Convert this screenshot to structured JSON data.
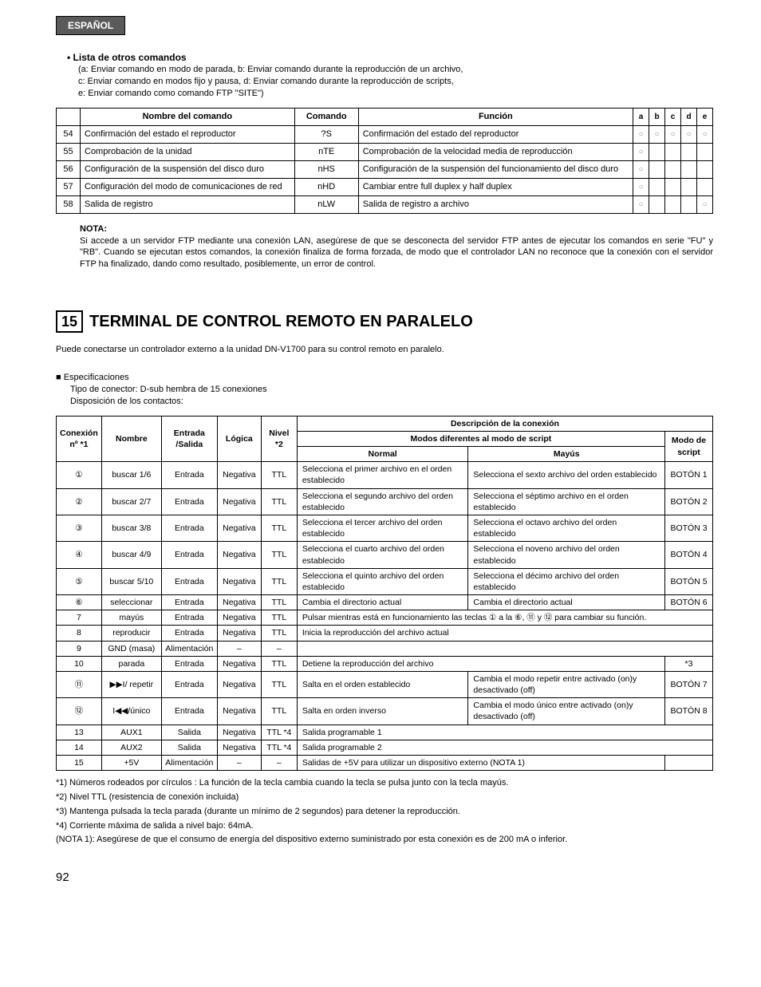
{
  "lang_badge": "ESPAÑOL",
  "list_title": "Lista de otros comandos",
  "cmd_notes": {
    "a": "(a: Enviar comando en modo de parada, b: Enviar comando durante la reproducción de un archivo,",
    "c": "c: Enviar comando en modos fijo y pausa, d: Enviar comando durante la reproducción de scripts,",
    "e": "e: Enviar comando como comando FTP \"SITE\")"
  },
  "t1_headers": {
    "name": "Nombre del comando",
    "cmd": "Comando",
    "func": "Función",
    "a": "a",
    "b": "b",
    "c": "c",
    "d": "d",
    "e": "e"
  },
  "t1_rows": [
    {
      "n": "54",
      "name": "Confirmación del estado el reproductor",
      "cmd": "?S",
      "func": "Confirmación del estado del reproductor",
      "a": "○",
      "b": "○",
      "c": "○",
      "d": "○",
      "e": "○"
    },
    {
      "n": "55",
      "name": "Comprobación de la unidad",
      "cmd": "nTE",
      "func": "Comprobación de la velocidad media de reproducción",
      "a": "○",
      "b": "",
      "c": "",
      "d": "",
      "e": ""
    },
    {
      "n": "56",
      "name": "Configuración de la suspensión del disco duro",
      "cmd": "nHS",
      "func": "Configuración de la suspensión del funcionamiento del disco duro",
      "a": "○",
      "b": "",
      "c": "",
      "d": "",
      "e": ""
    },
    {
      "n": "57",
      "name": "Configuración del modo de comunicaciones de red",
      "cmd": "nHD",
      "func": "Cambiar entre full duplex y half duplex",
      "a": "○",
      "b": "",
      "c": "",
      "d": "",
      "e": ""
    },
    {
      "n": "58",
      "name": "Salida de registro",
      "cmd": "nLW",
      "func": "Salida de registro a archivo",
      "a": "○",
      "b": "",
      "c": "",
      "d": "",
      "e": "○"
    }
  ],
  "note_label": "NOTA:",
  "note_text": "Si accede a un servidor FTP mediante una conexión LAN, asegúrese de que se desconecta del servidor FTP antes de ejecutar los comandos en serie \"FU\" y \"RB\". Cuando se ejecutan estos comandos, la conexión finaliza de forma forzada, de modo que el controlador LAN no reconoce que la conexión con el servidor FTP ha finalizado, dando como resultado, posiblemente, un error de control.",
  "section_num": "15",
  "section_title": "TERMINAL DE CONTROL REMOTO EN PARALELO",
  "intro": "Puede conectarse un controlador externo a la unidad DN-V1700 para su control remoto en paralelo.",
  "spec_label": "Especificaciones",
  "spec_connector": "Tipo de conector: D-sub hembra de 15 conexiones",
  "spec_layout": "Disposición de los contactos:",
  "t2_headers": {
    "pin": "Conexión nº *1",
    "name": "Nombre",
    "io": "Entrada /Salida",
    "logic": "Lógica",
    "level": "Nivel *2",
    "desc": "Descripción de la conexión",
    "modes": "Modos diferentes al modo de script",
    "normal": "Normal",
    "shift": "Mayús",
    "script": "Modo de script"
  },
  "t2_rows": [
    {
      "pin": "①",
      "name": "buscar 1/6",
      "io": "Entrada",
      "logic": "Negativa",
      "level": "TTL",
      "normal": "Selecciona el primer archivo en el orden establecido",
      "shift": "Selecciona el sexto archivo del orden establecido",
      "script": "BOTÓN 1",
      "span": 0
    },
    {
      "pin": "②",
      "name": "buscar 2/7",
      "io": "Entrada",
      "logic": "Negativa",
      "level": "TTL",
      "normal": "Selecciona el segundo archivo del orden establecido",
      "shift": "Selecciona el séptimo archivo en el orden establecido",
      "script": "BOTÓN 2",
      "span": 0
    },
    {
      "pin": "③",
      "name": "buscar 3/8",
      "io": "Entrada",
      "logic": "Negativa",
      "level": "TTL",
      "normal": "Selecciona el tercer archivo del orden establecido",
      "shift": "Selecciona el octavo archivo del orden establecido",
      "script": "BOTÓN 3",
      "span": 0
    },
    {
      "pin": "④",
      "name": "buscar 4/9",
      "io": "Entrada",
      "logic": "Negativa",
      "level": "TTL",
      "normal": "Selecciona el cuarto archivo del orden establecido",
      "shift": "Selecciona el noveno archivo del orden establecido",
      "script": "BOTÓN 4",
      "span": 0
    },
    {
      "pin": "⑤",
      "name": "buscar 5/10",
      "io": "Entrada",
      "logic": "Negativa",
      "level": "TTL",
      "normal": "Selecciona el quinto archivo del orden establecido",
      "shift": "Selecciona el décimo archivo del orden establecido",
      "script": "BOTÓN 5",
      "span": 0
    },
    {
      "pin": "⑥",
      "name": "seleccionar",
      "io": "Entrada",
      "logic": "Negativa",
      "level": "TTL",
      "normal": "Cambia el directorio actual",
      "shift": "Cambia el directorio actual",
      "script": "BOTÓN 6",
      "span": 0
    },
    {
      "pin": "7",
      "name": "mayús",
      "io": "Entrada",
      "logic": "Negativa",
      "level": "TTL",
      "normal": "Pulsar mientras está en funcionamiento las teclas ① a la ⑥, ⑪ y ⑫ para cambiar su función.",
      "shift": "",
      "script": "",
      "span": 3
    },
    {
      "pin": "8",
      "name": "reproducir",
      "io": "Entrada",
      "logic": "Negativa",
      "level": "TTL",
      "normal": "Inicia la reproducción del archivo actual",
      "shift": "",
      "script": "",
      "span": 3
    },
    {
      "pin": "9",
      "name": "GND (masa)",
      "io": "Alimentación",
      "logic": "–",
      "level": "–",
      "normal": "",
      "shift": "",
      "script": "",
      "span": 3
    },
    {
      "pin": "10",
      "name": "parada",
      "io": "Entrada",
      "logic": "Negativa",
      "level": "TTL",
      "normal": "Detiene la reproducción del archivo",
      "shift": "",
      "script": "*3",
      "span": 2
    },
    {
      "pin": "⑪",
      "name": "▶▶I/ repetir",
      "io": "Entrada",
      "logic": "Negativa",
      "level": "TTL",
      "normal": "Salta en el orden establecido",
      "shift": "Cambia el modo repetir entre activado (on)y desactivado (off)",
      "script": "BOTÓN 7",
      "span": 0
    },
    {
      "pin": "⑫",
      "name": "I◀◀/único",
      "io": "Entrada",
      "logic": "Negativa",
      "level": "TTL",
      "normal": "Salta en orden inverso",
      "shift": "Cambia el modo único entre activado (on)y desactivado (off)",
      "script": "BOTÓN 8",
      "span": 0
    },
    {
      "pin": "13",
      "name": "AUX1",
      "io": "Salida",
      "logic": "Negativa",
      "level": "TTL *4",
      "normal": "Salida programable 1",
      "shift": "",
      "script": "",
      "span": 3
    },
    {
      "pin": "14",
      "name": "AUX2",
      "io": "Salida",
      "logic": "Negativa",
      "level": "TTL *4",
      "normal": "Salida programable 2",
      "shift": "",
      "script": "",
      "span": 3
    },
    {
      "pin": "15",
      "name": "+5V",
      "io": "Alimentación",
      "logic": "–",
      "level": "–",
      "normal": "Salidas de +5V para utilizar un dispositivo externo (NOTA 1)",
      "shift": "",
      "script": "",
      "span": 2
    }
  ],
  "footnotes": {
    "f1": "*1) Números rodeados por círculos : La función de la tecla cambia cuando la tecla se pulsa junto con la tecla mayús.",
    "f2": "*2) Nivel TTL (resistencia de conexión incluida)",
    "f3": "*3) Mantenga pulsada la tecla parada (durante un mínimo de 2 segundos) para detener la reproducción.",
    "f4": "*4) Corriente máxima de salida a nivel bajo: 64mA.",
    "n1": "(NOTA 1):  Asegúrese de que el consumo de energía del dispositivo externo suministrado por esta conexión es de 200 mA o inferior."
  },
  "page_num": "92"
}
